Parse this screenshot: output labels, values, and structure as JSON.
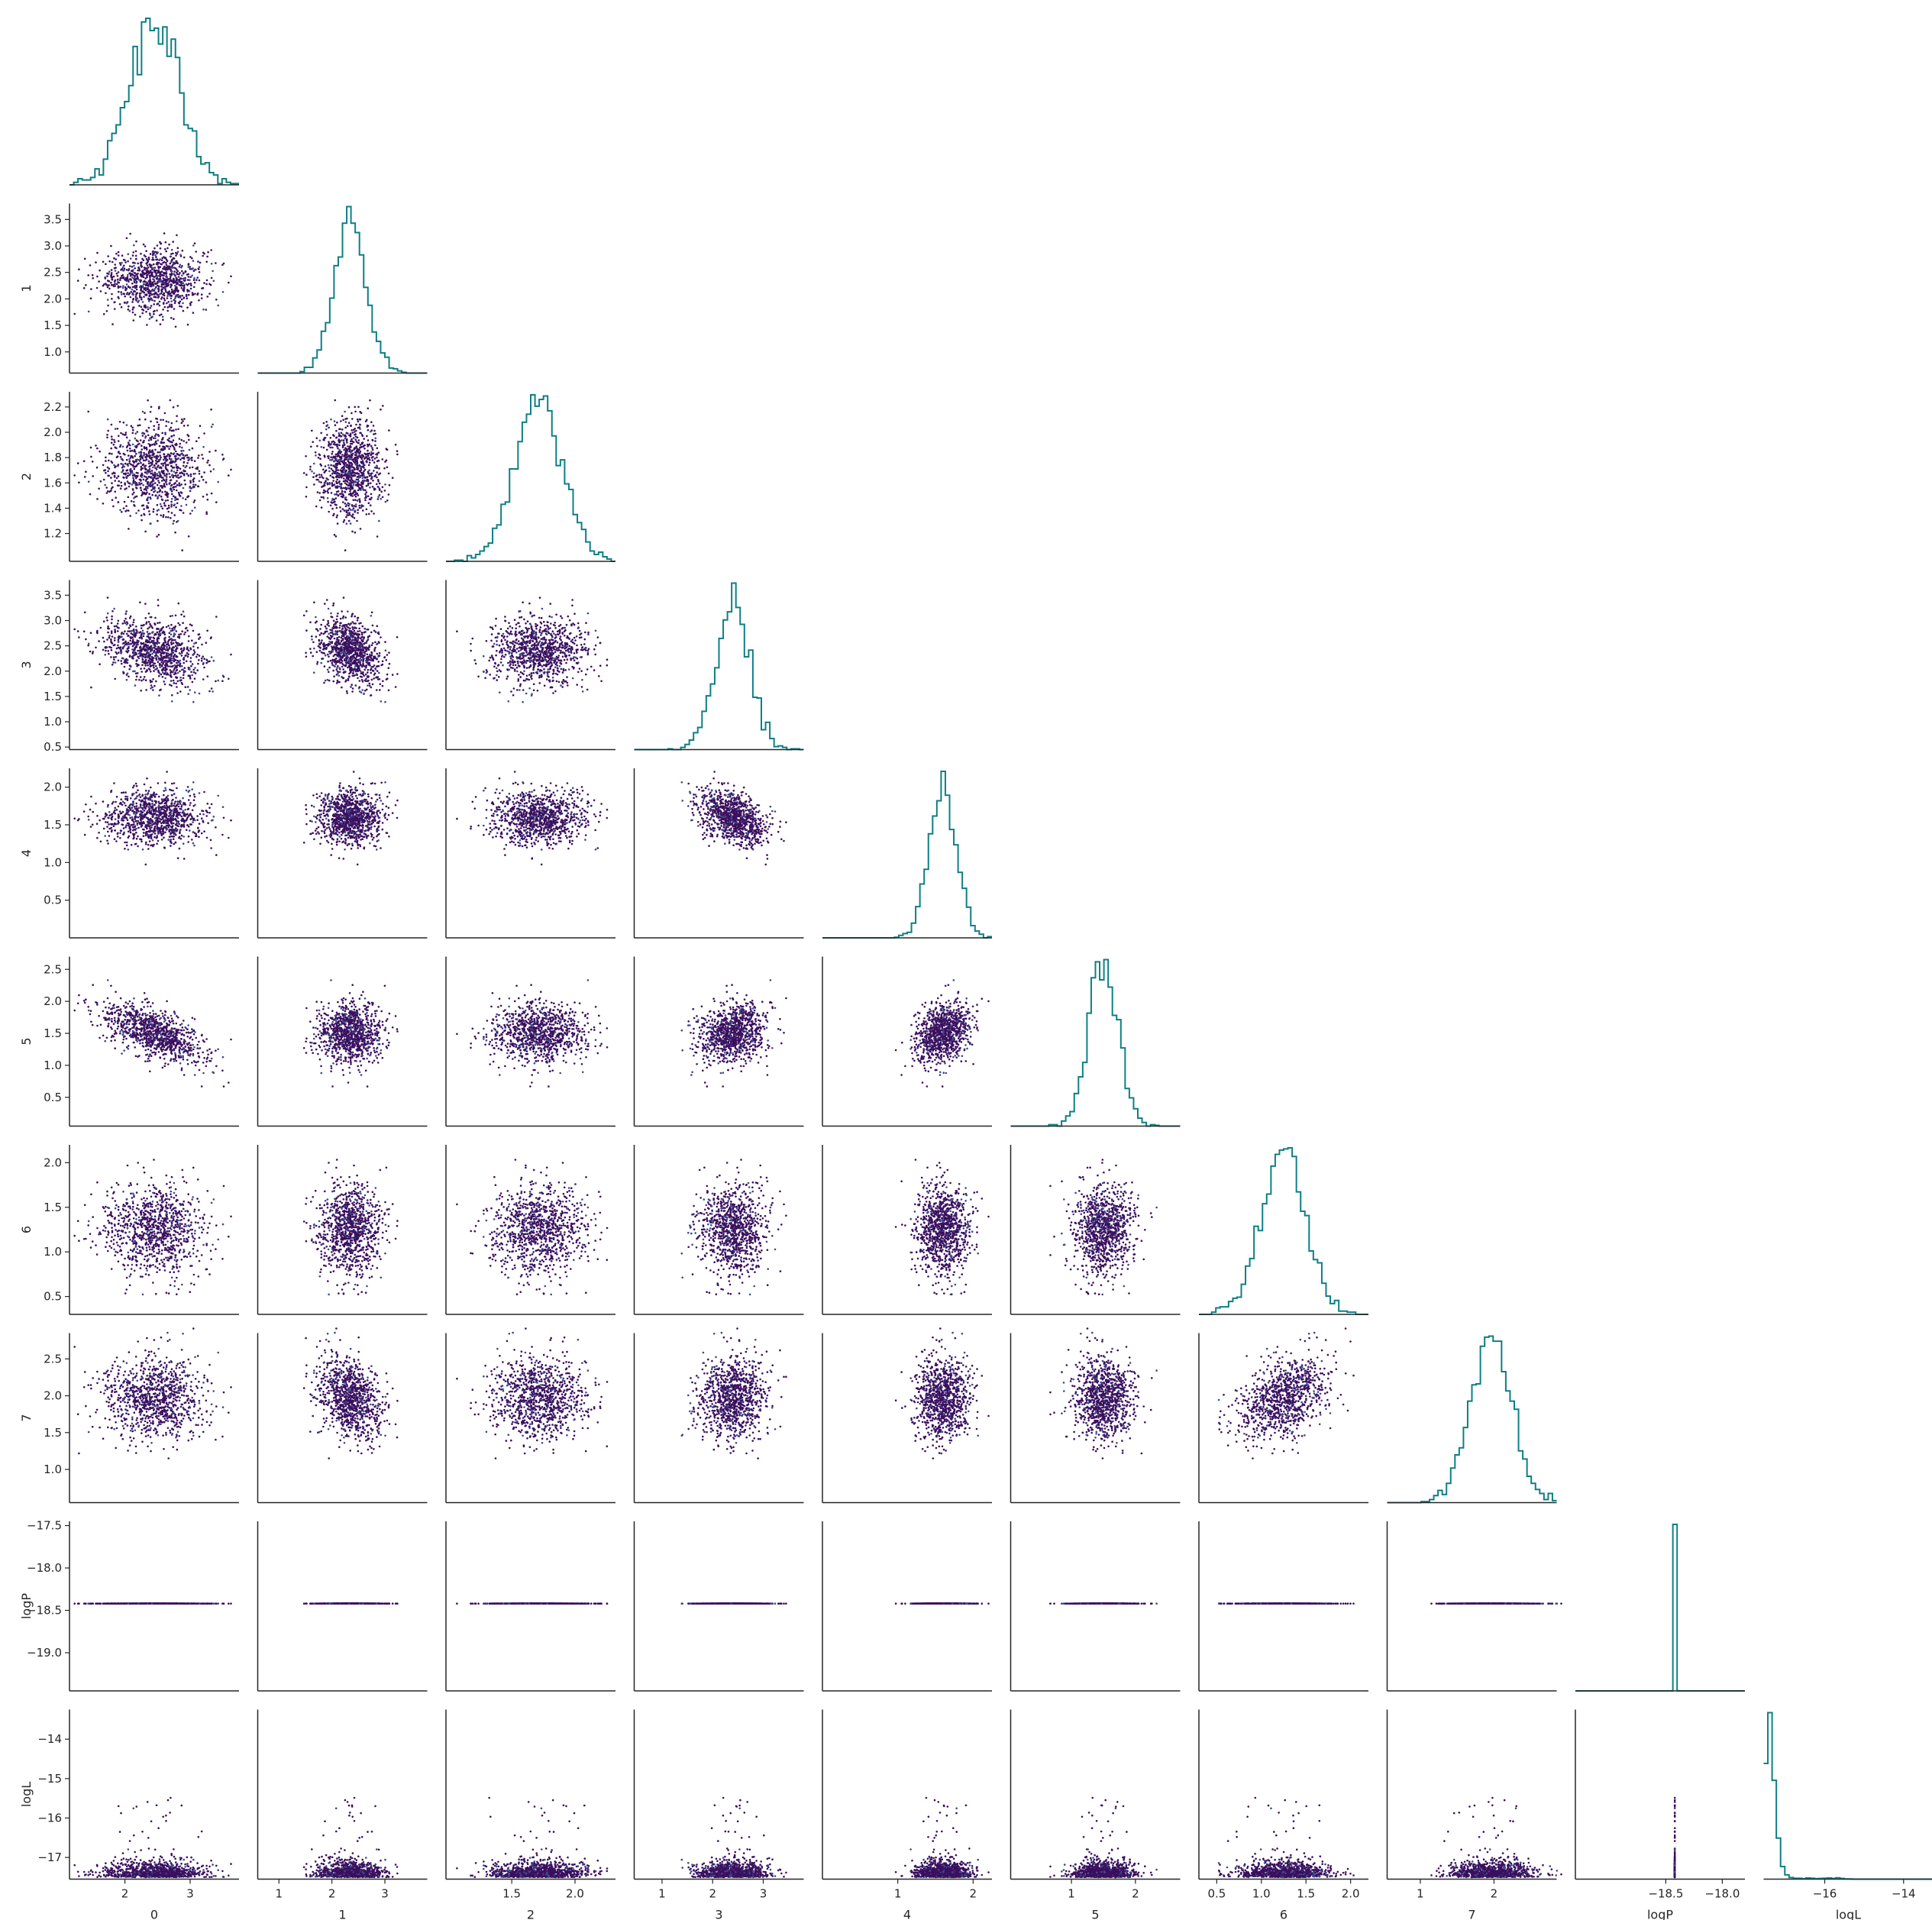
{
  "chart_data": {
    "type": "scatter",
    "kind": "corner-pairplot",
    "title": "",
    "diagonal": "step-histogram",
    "colors": {
      "histogram": "#0e7f84",
      "scatter_dense": "#3b0f5e",
      "scatter_mid": "#3d4a8a",
      "outlier": "#f2e24c",
      "axis": "#262626"
    },
    "variables": [
      {
        "name": "0",
        "label": "0",
        "range": [
          1.15,
          3.75
        ],
        "ticks": [
          {
            "v": 2,
            "t": "2"
          },
          {
            "v": 3,
            "t": "3"
          }
        ],
        "mean": 2.45,
        "sd": 0.38
      },
      {
        "name": "1",
        "label": "1",
        "range": [
          0.6,
          3.8
        ],
        "ticks": [
          {
            "v": 1.0,
            "t": "1.0"
          },
          {
            "v": 1.5,
            "t": "1.5"
          },
          {
            "v": 2.0,
            "t": "2.0"
          },
          {
            "v": 2.5,
            "t": "2.5"
          },
          {
            "v": 3.0,
            "t": "3.0"
          },
          {
            "v": 3.5,
            "t": "3.5"
          }
        ],
        "xticks": [
          {
            "v": 1,
            "t": "1"
          },
          {
            "v": 2,
            "t": "2"
          },
          {
            "v": 3,
            "t": "3"
          }
        ],
        "mean": 2.35,
        "sd": 0.3
      },
      {
        "name": "2",
        "label": "2",
        "range": [
          0.98,
          2.32
        ],
        "ticks": [
          {
            "v": 1.2,
            "t": "1.2"
          },
          {
            "v": 1.4,
            "t": "1.4"
          },
          {
            "v": 1.6,
            "t": "1.6"
          },
          {
            "v": 1.8,
            "t": "1.8"
          },
          {
            "v": 2.0,
            "t": "2.0"
          },
          {
            "v": 2.2,
            "t": "2.2"
          }
        ],
        "xticks": [
          {
            "v": 1.5,
            "t": "1.5"
          },
          {
            "v": 2.0,
            "t": "2.0"
          }
        ],
        "mean": 1.72,
        "sd": 0.19
      },
      {
        "name": "3",
        "label": "3",
        "range": [
          0.45,
          3.8
        ],
        "ticks": [
          {
            "v": 0.5,
            "t": "0.5"
          },
          {
            "v": 1.0,
            "t": "1.0"
          },
          {
            "v": 1.5,
            "t": "1.5"
          },
          {
            "v": 2.0,
            "t": "2.0"
          },
          {
            "v": 2.5,
            "t": "2.5"
          },
          {
            "v": 3.0,
            "t": "3.0"
          },
          {
            "v": 3.5,
            "t": "3.5"
          }
        ],
        "xticks": [
          {
            "v": 1,
            "t": "1"
          },
          {
            "v": 2,
            "t": "2"
          },
          {
            "v": 3,
            "t": "3"
          }
        ],
        "mean": 2.4,
        "sd": 0.35
      },
      {
        "name": "4",
        "label": "4",
        "range": [
          0.0,
          2.25
        ],
        "ticks": [
          {
            "v": 0.5,
            "t": "0.5"
          },
          {
            "v": 1.0,
            "t": "1.0"
          },
          {
            "v": 1.5,
            "t": "1.5"
          },
          {
            "v": 2.0,
            "t": "2.0"
          }
        ],
        "xticks": [
          {
            "v": 1,
            "t": "1"
          },
          {
            "v": 2,
            "t": "2"
          }
        ],
        "mean": 1.6,
        "sd": 0.2
      },
      {
        "name": "5",
        "label": "5",
        "range": [
          0.05,
          2.7
        ],
        "ticks": [
          {
            "v": 0.5,
            "t": "0.5"
          },
          {
            "v": 1.0,
            "t": "1.0"
          },
          {
            "v": 1.5,
            "t": "1.5"
          },
          {
            "v": 2.0,
            "t": "2.0"
          },
          {
            "v": 2.5,
            "t": "2.5"
          }
        ],
        "xticks": [
          {
            "v": 1,
            "t": "1"
          },
          {
            "v": 2,
            "t": "2"
          }
        ],
        "mean": 1.5,
        "sd": 0.3
      },
      {
        "name": "6",
        "label": "6",
        "range": [
          0.3,
          2.2
        ],
        "ticks": [
          {
            "v": 0.5,
            "t": "0.5"
          },
          {
            "v": 1.0,
            "t": "1.0"
          },
          {
            "v": 1.5,
            "t": "1.5"
          },
          {
            "v": 2.0,
            "t": "2.0"
          }
        ],
        "xticks": [
          {
            "v": 0.5,
            "t": "0.5"
          },
          {
            "v": 1.0,
            "t": "1.0"
          },
          {
            "v": 1.5,
            "t": "1.5"
          },
          {
            "v": 2.0,
            "t": "2.0"
          }
        ],
        "mean": 1.25,
        "sd": 0.25
      },
      {
        "name": "7",
        "label": "7",
        "range": [
          0.55,
          2.85
        ],
        "ticks": [
          {
            "v": 1.0,
            "t": "1.0"
          },
          {
            "v": 1.5,
            "t": "1.5"
          },
          {
            "v": 2.0,
            "t": "2.0"
          },
          {
            "v": 2.5,
            "t": "2.5"
          }
        ],
        "xticks": [
          {
            "v": 1,
            "t": "1"
          },
          {
            "v": 2,
            "t": "2"
          }
        ],
        "mean": 1.95,
        "sd": 0.3
      },
      {
        "name": "logP",
        "label": "logP",
        "range": [
          -19.45,
          -17.45
        ],
        "ticks": [
          {
            "v": -17.5,
            "t": "−17.5"
          },
          {
            "v": -18.0,
            "t": "−18.0"
          },
          {
            "v": -18.5,
            "t": "−18.5"
          },
          {
            "v": -19.0,
            "t": "−19.0"
          }
        ],
        "xrange": [
          -19.3,
          -17.8
        ],
        "xticks": [
          {
            "v": -18.5,
            "t": "−18.5"
          },
          {
            "v": -18.0,
            "t": "−18.0"
          }
        ],
        "mean": -18.42,
        "sd": 0.0
      },
      {
        "name": "logL",
        "label": "logL",
        "range": [
          -17.55,
          -13.25
        ],
        "ticks": [
          {
            "v": -14,
            "t": "−14"
          },
          {
            "v": -15,
            "t": "−15"
          },
          {
            "v": -16,
            "t": "−16"
          },
          {
            "v": -17,
            "t": "−17"
          }
        ],
        "xrange": [
          -17.55,
          -13.25
        ],
        "xticks": [
          {
            "v": -16,
            "t": "−16"
          },
          {
            "v": -14,
            "t": "−14"
          }
        ],
        "mean": -17.3,
        "sd": 0.2
      }
    ],
    "samples": 2000,
    "outlier_note_visible": false
  }
}
